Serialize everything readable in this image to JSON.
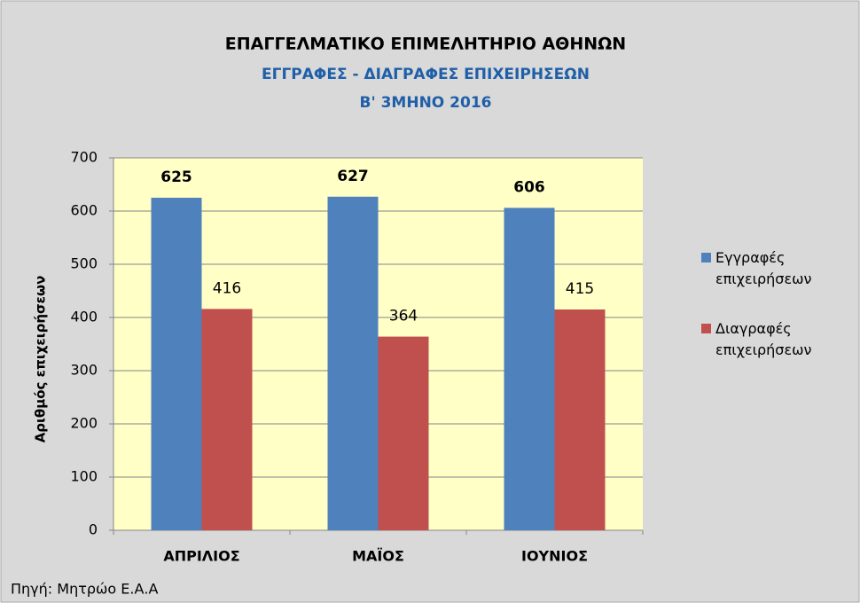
{
  "chart_data": {
    "type": "bar",
    "title": "ΕΠΑΓΓΕΛΜΑΤΙΚΟ ΕΠΙΜΕΛΗΤΗΡΙΟ ΑΘΗΝΩΝ",
    "subtitle": [
      "ΕΓΓΡΑΦΕΣ - ΔΙΑΓΡΑΦΕΣ ΕΠΙΧΕΙΡΗΣΕΩΝ",
      "Β' 3ΜΗΝΟ 2016"
    ],
    "y_label": "Αριθμός επιχειρήσεων",
    "source": "Πηγή: Μητρώο Ε.Α.Α",
    "categories": [
      "ΑΠΡΙΛΙΟΣ",
      "ΜΑΪΟΣ",
      "ΙΟΥΝΙΟΣ"
    ],
    "series": [
      {
        "name": "Εγγραφές επιχειρήσεων",
        "color": "#4f81bd",
        "values": [
          625,
          627,
          606
        ]
      },
      {
        "name": "Διαγραφές επιχειρήσεων",
        "color": "#c0504d",
        "values": [
          416,
          364,
          415
        ]
      }
    ],
    "ylim": [
      0,
      700
    ],
    "yticks": [
      0,
      100,
      200,
      300,
      400,
      500,
      600,
      700
    ],
    "grid": true,
    "legend": "right"
  }
}
